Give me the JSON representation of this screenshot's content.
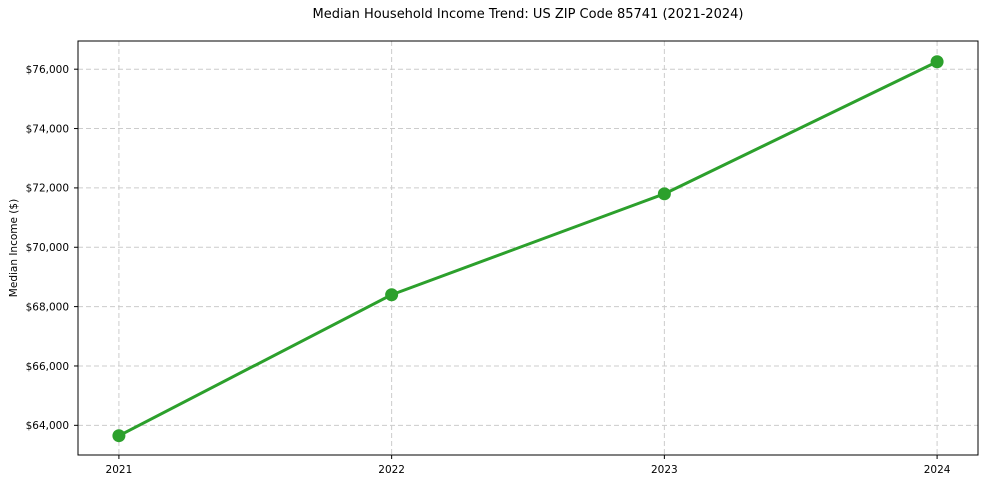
{
  "figure": {
    "background": "#ffffff"
  },
  "chart_data": {
    "type": "line",
    "title": "Median Household Income Trend: US ZIP Code 85741 (2021-2024)",
    "ylabel": "Median Income ($)",
    "xlabel": "",
    "x": [
      2021,
      2022,
      2023,
      2024
    ],
    "x_tick_labels": [
      "2021",
      "2022",
      "2023",
      "2024"
    ],
    "series": [
      {
        "values": [
          63650,
          68400,
          71800,
          76250
        ],
        "color": "#2ca02c",
        "marker": "circle",
        "line_width": 3
      }
    ],
    "y_ticks": [
      64000,
      66000,
      68000,
      70000,
      72000,
      74000,
      76000
    ],
    "y_tick_labels": [
      "$64,000",
      "$66,000",
      "$68,000",
      "$70,000",
      "$72,000",
      "$74,000",
      "$76,000"
    ],
    "ylim": [
      63000,
      76950
    ],
    "xlim": [
      2020.85,
      2024.15
    ],
    "grid": "dashed",
    "grid_color": "#cccccc",
    "axis_color": "#000000",
    "legend": "none"
  }
}
